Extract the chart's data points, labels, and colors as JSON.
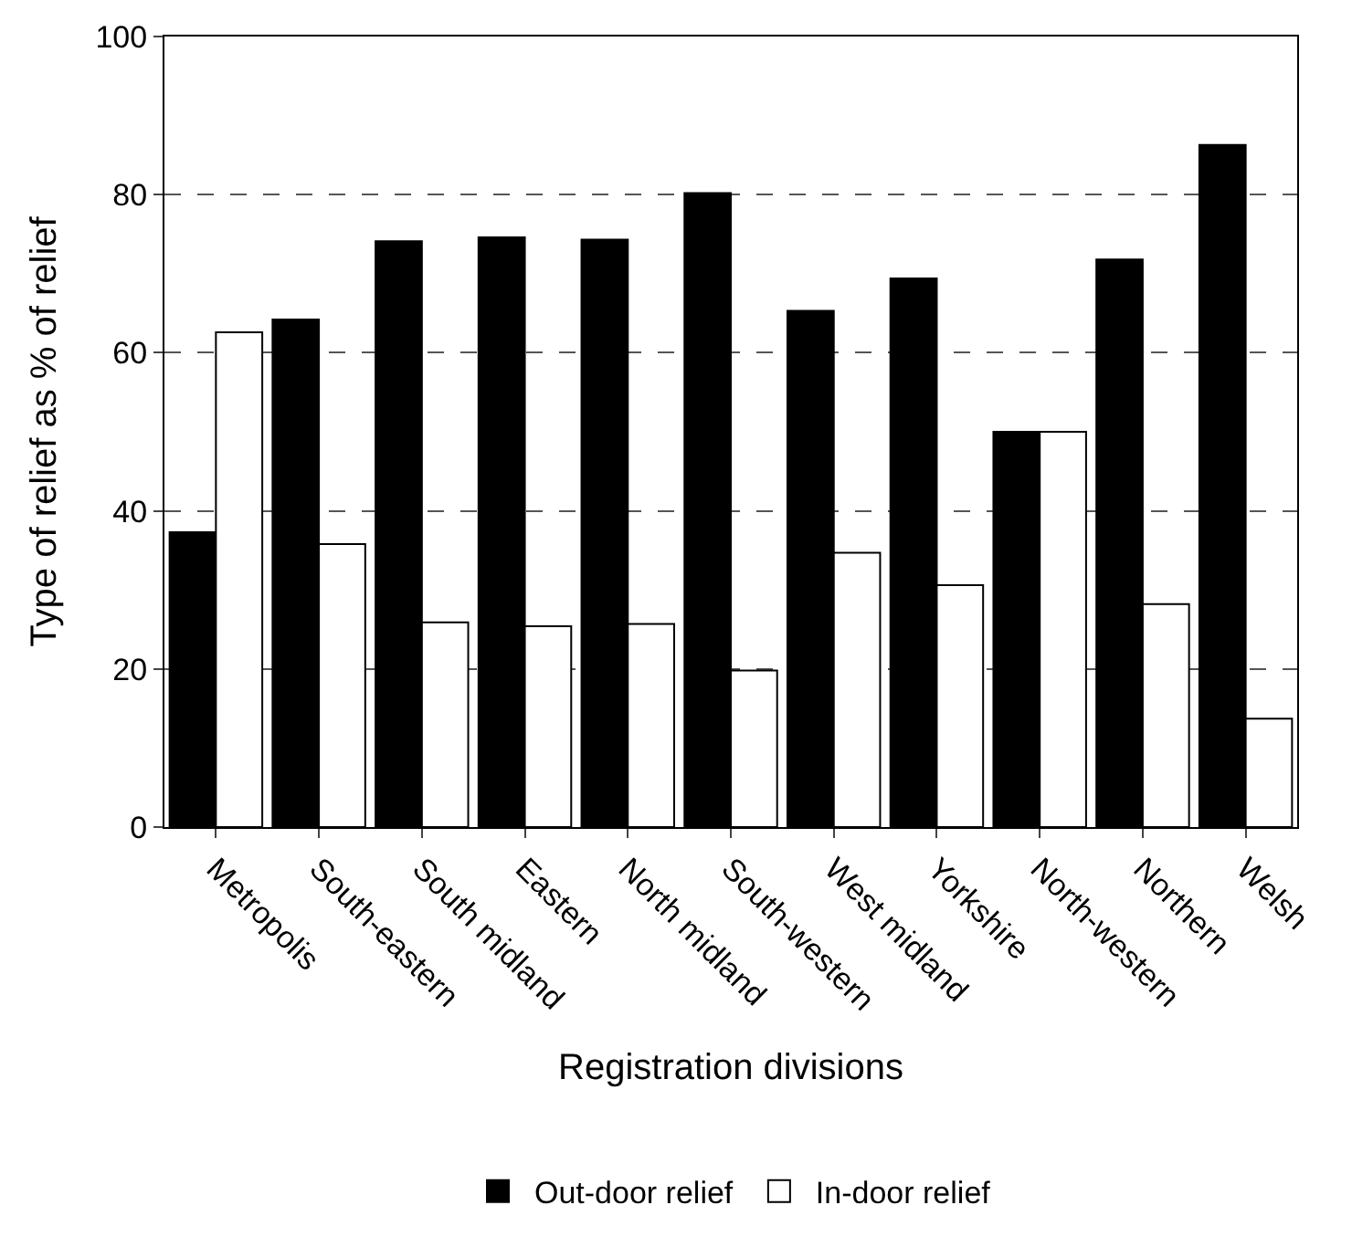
{
  "chart_data": {
    "type": "bar",
    "xlabel": "Registration divisions",
    "ylabel": "Type of relief as % of relief",
    "categories": [
      "Metropolis",
      "South-eastern",
      "South midland",
      "Eastern",
      "North midland",
      "South-western",
      "West midland",
      "Yorkshire",
      "North-western",
      "Northern",
      "Welsh"
    ],
    "series": [
      {
        "name": "Out-door relief",
        "color": "#000000",
        "values": [
          37.3,
          64.2,
          74.1,
          74.6,
          74.3,
          80.2,
          65.3,
          69.4,
          50.0,
          71.8,
          86.3
        ]
      },
      {
        "name": "In-door relief",
        "color": "#ffffff",
        "values": [
          62.6,
          35.8,
          25.9,
          25.4,
          25.7,
          19.8,
          34.7,
          30.6,
          50.0,
          28.2,
          13.7
        ]
      }
    ],
    "ylim": [
      0,
      100
    ],
    "yticks": [
      0,
      20,
      40,
      60,
      80,
      100
    ],
    "grid": "y",
    "legend": "bottom"
  }
}
